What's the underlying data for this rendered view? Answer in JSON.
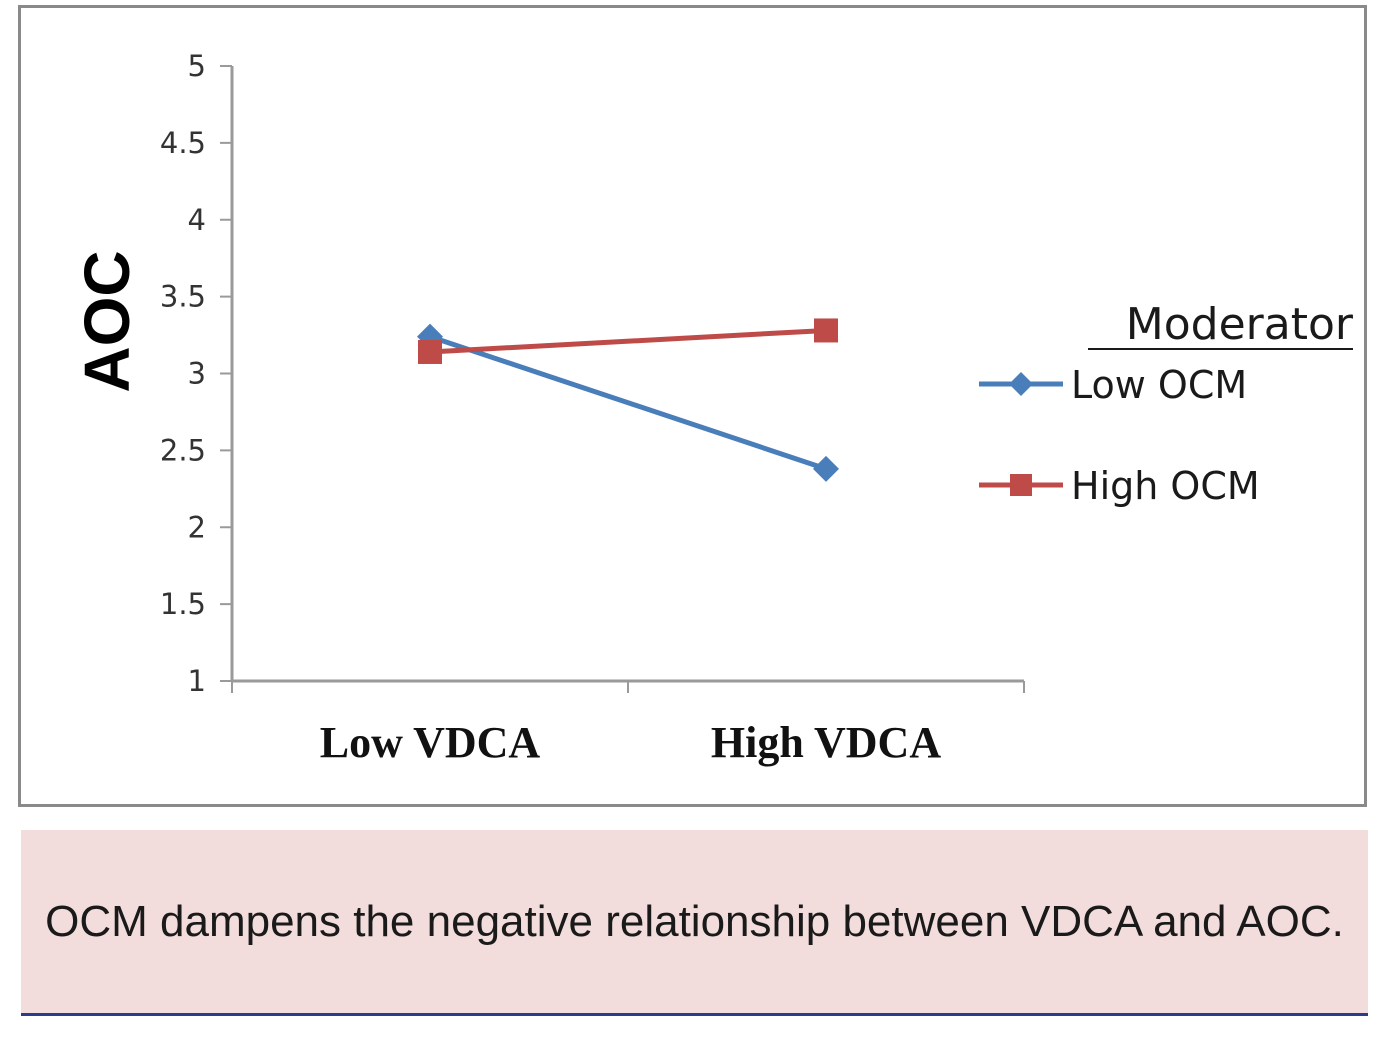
{
  "chart_data": {
    "type": "line",
    "categories": [
      "Low VDCA",
      "High VDCA"
    ],
    "series": [
      {
        "name": "Low OCM",
        "values": [
          3.24,
          2.38
        ],
        "color": "#4a7ebb",
        "marker": "diamond"
      },
      {
        "name": "High OCM",
        "values": [
          3.14,
          3.28
        ],
        "color": "#be4b48",
        "marker": "square"
      }
    ],
    "xlabel": "",
    "ylabel": "AOC",
    "ylim": [
      1,
      5
    ],
    "yticks": [
      1,
      1.5,
      2,
      2.5,
      3,
      3.5,
      4,
      4.5,
      5
    ],
    "legend_title": "Moderator",
    "legend_position": "right",
    "grid": false
  },
  "caption": "OCM dampens the negative relationship between VDCA and AOC."
}
